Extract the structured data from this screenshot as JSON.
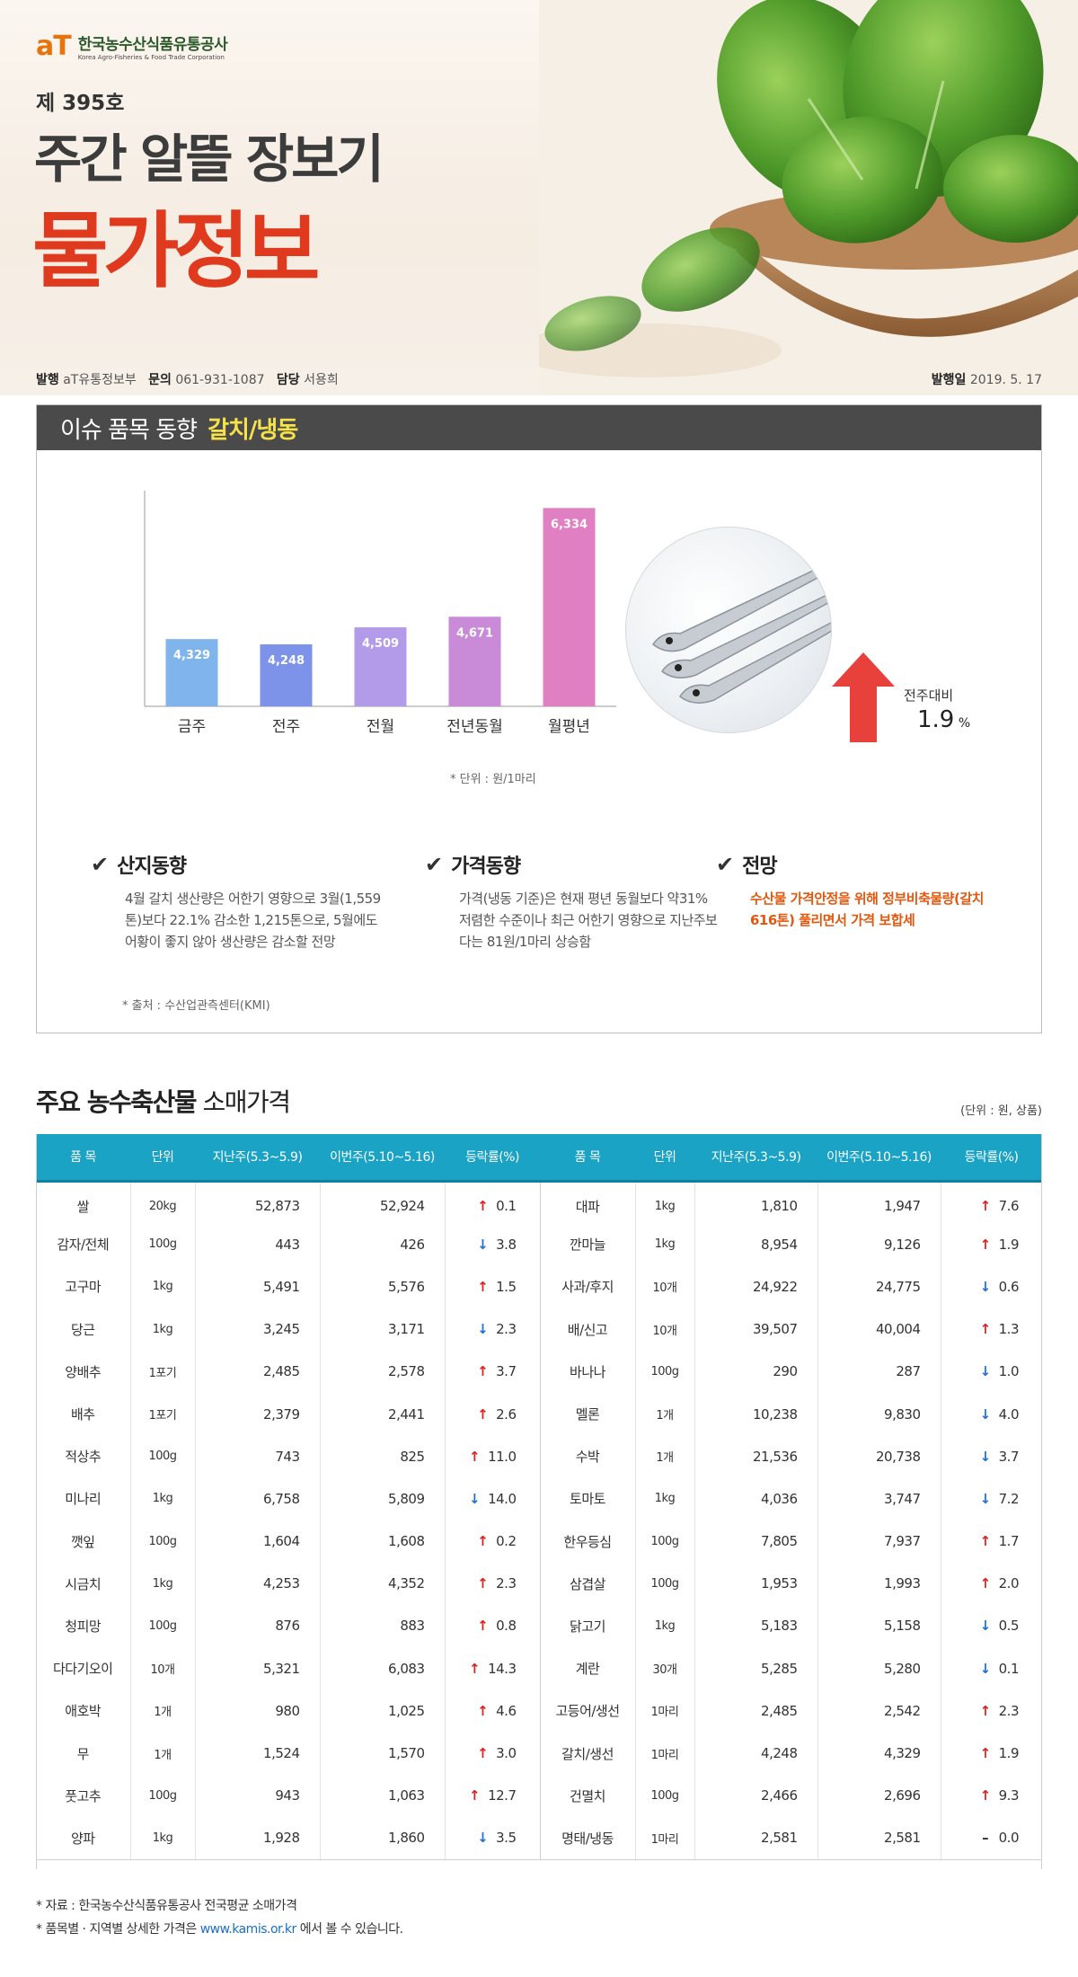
{
  "header": {
    "logo_mark": "aT",
    "logo_ko": "한국농수산식품유통공사",
    "logo_en": "Korea Agro-Fisheries & Food Trade Corporation",
    "issue_prefix": "제 ",
    "issue_number": "395",
    "issue_suffix": "호",
    "title_line1": "주간 알뜰 장보기",
    "title_line2": "물가정보",
    "publisher_label": "발행",
    "publisher": "aT유통정보부",
    "contact_label": "문의",
    "contact": "061-931-1087",
    "manager_label": "담당",
    "manager": "서용희",
    "date_label": "발행일",
    "date": "2019. 5. 17"
  },
  "issue": {
    "label": "이슈 품목 동향",
    "item": "갈치/냉동",
    "unit_note": "* 단위 : 원/1마리",
    "change_label": "전주대비",
    "change_value": "1.9",
    "change_unit": "%",
    "columns": [
      {
        "title": "산지동향",
        "body": "4월 갈치 생산량은 어한기 영향으로 3월(1,559톤)보다 22.1% 감소한 1,215톤으로, 5월에도 어황이 좋지 않아 생산량은 감소할 전망"
      },
      {
        "title": "가격동향",
        "body": "가격(냉동 기준)은 현재 평년 동월보다 약31% 저렴한 수준이나 최근 어한기 영향으로 지난주보다는 81원/1마리 상승함"
      },
      {
        "title": "전망",
        "body": "수산물 가격안정을 위해 정부비축물량(갈치 616톤) 풀리면서 가격 보합세"
      }
    ],
    "source": "* 출처 : 수산업관측센터(KMI)"
  },
  "chart_data": {
    "type": "bar",
    "categories": [
      "금주",
      "전주",
      "전월",
      "전년동월",
      "월평년"
    ],
    "values": [
      4329,
      4248,
      4509,
      4671,
      6334
    ],
    "value_labels": [
      "4,329",
      "4,248",
      "4,509",
      "4,671",
      "6,334"
    ],
    "colors": [
      "#7fb4ec",
      "#7d93ea",
      "#b49bea",
      "#c98ad8",
      "#e17fc3"
    ],
    "ylim": [
      3300,
      6600
    ]
  },
  "table": {
    "title_bold": "주요 농수축산물",
    "title_rest": " 소매가격",
    "unit": "(단위 : 원, 상품)",
    "headers": [
      "품 목",
      "단위",
      "지난주(5.3~5.9)",
      "이번주(5.10~5.16)",
      "등락률(%)",
      "품 목",
      "단위",
      "지난주(5.3~5.9)",
      "이번주(5.10~5.16)",
      "등락률(%)"
    ],
    "rows": [
      [
        {
          "name": "쌀",
          "unit": "20kg",
          "prev": "52,873",
          "curr": "52,924",
          "dir": "up",
          "rate": "0.1"
        },
        {
          "name": "대파",
          "unit": "1kg",
          "prev": "1,810",
          "curr": "1,947",
          "dir": "up",
          "rate": "7.6"
        }
      ],
      [
        {
          "name": "감자/전체",
          "unit": "100g",
          "prev": "443",
          "curr": "426",
          "dir": "down",
          "rate": "3.8"
        },
        {
          "name": "깐마늘",
          "unit": "1kg",
          "prev": "8,954",
          "curr": "9,126",
          "dir": "up",
          "rate": "1.9"
        }
      ],
      [
        {
          "name": "고구마",
          "unit": "1kg",
          "prev": "5,491",
          "curr": "5,576",
          "dir": "up",
          "rate": "1.5"
        },
        {
          "name": "사과/후지",
          "unit": "10개",
          "prev": "24,922",
          "curr": "24,775",
          "dir": "down",
          "rate": "0.6"
        }
      ],
      [
        {
          "name": "당근",
          "unit": "1kg",
          "prev": "3,245",
          "curr": "3,171",
          "dir": "down",
          "rate": "2.3"
        },
        {
          "name": "배/신고",
          "unit": "10개",
          "prev": "39,507",
          "curr": "40,004",
          "dir": "up",
          "rate": "1.3"
        }
      ],
      [
        {
          "name": "양배추",
          "unit": "1포기",
          "prev": "2,485",
          "curr": "2,578",
          "dir": "up",
          "rate": "3.7"
        },
        {
          "name": "바나나",
          "unit": "100g",
          "prev": "290",
          "curr": "287",
          "dir": "down",
          "rate": "1.0"
        }
      ],
      [
        {
          "name": "배추",
          "unit": "1포기",
          "prev": "2,379",
          "curr": "2,441",
          "dir": "up",
          "rate": "2.6"
        },
        {
          "name": "멜론",
          "unit": "1개",
          "prev": "10,238",
          "curr": "9,830",
          "dir": "down",
          "rate": "4.0"
        }
      ],
      [
        {
          "name": "적상추",
          "unit": "100g",
          "prev": "743",
          "curr": "825",
          "dir": "up",
          "rate": "11.0"
        },
        {
          "name": "수박",
          "unit": "1개",
          "prev": "21,536",
          "curr": "20,738",
          "dir": "down",
          "rate": "3.7"
        }
      ],
      [
        {
          "name": "미나리",
          "unit": "1kg",
          "prev": "6,758",
          "curr": "5,809",
          "dir": "down",
          "rate": "14.0"
        },
        {
          "name": "토마토",
          "unit": "1kg",
          "prev": "4,036",
          "curr": "3,747",
          "dir": "down",
          "rate": "7.2"
        }
      ],
      [
        {
          "name": "깻잎",
          "unit": "100g",
          "prev": "1,604",
          "curr": "1,608",
          "dir": "up",
          "rate": "0.2"
        },
        {
          "name": "한우등심",
          "unit": "100g",
          "prev": "7,805",
          "curr": "7,937",
          "dir": "up",
          "rate": "1.7"
        }
      ],
      [
        {
          "name": "시금치",
          "unit": "1kg",
          "prev": "4,253",
          "curr": "4,352",
          "dir": "up",
          "rate": "2.3"
        },
        {
          "name": "삼겹살",
          "unit": "100g",
          "prev": "1,953",
          "curr": "1,993",
          "dir": "up",
          "rate": "2.0"
        }
      ],
      [
        {
          "name": "청피망",
          "unit": "100g",
          "prev": "876",
          "curr": "883",
          "dir": "up",
          "rate": "0.8"
        },
        {
          "name": "닭고기",
          "unit": "1kg",
          "prev": "5,183",
          "curr": "5,158",
          "dir": "down",
          "rate": "0.5"
        }
      ],
      [
        {
          "name": "다다기오이",
          "unit": "10개",
          "prev": "5,321",
          "curr": "6,083",
          "dir": "up",
          "rate": "14.3"
        },
        {
          "name": "계란",
          "unit": "30개",
          "prev": "5,285",
          "curr": "5,280",
          "dir": "down",
          "rate": "0.1"
        }
      ],
      [
        {
          "name": "애호박",
          "unit": "1개",
          "prev": "980",
          "curr": "1,025",
          "dir": "up",
          "rate": "4.6"
        },
        {
          "name": "고등어/생선",
          "unit": "1마리",
          "prev": "2,485",
          "curr": "2,542",
          "dir": "up",
          "rate": "2.3"
        }
      ],
      [
        {
          "name": "무",
          "unit": "1개",
          "prev": "1,524",
          "curr": "1,570",
          "dir": "up",
          "rate": "3.0"
        },
        {
          "name": "갈치/생선",
          "unit": "1마리",
          "prev": "4,248",
          "curr": "4,329",
          "dir": "up",
          "rate": "1.9"
        }
      ],
      [
        {
          "name": "풋고추",
          "unit": "100g",
          "prev": "943",
          "curr": "1,063",
          "dir": "up",
          "rate": "12.7"
        },
        {
          "name": "건멸치",
          "unit": "100g",
          "prev": "2,466",
          "curr": "2,696",
          "dir": "up",
          "rate": "9.3"
        }
      ],
      [
        {
          "name": "양파",
          "unit": "1kg",
          "prev": "1,928",
          "curr": "1,860",
          "dir": "down",
          "rate": "3.5"
        },
        {
          "name": "명태/냉동",
          "unit": "1마리",
          "prev": "2,581",
          "curr": "2,581",
          "dir": "flat",
          "rate": "0.0"
        }
      ]
    ]
  },
  "footer": {
    "note1": "* 자료 : 한국농수산식품유통공사 전국평균 소매가격",
    "note2_pre": "* 품목별 · 지역별 상세한 가격은 ",
    "link": "www.kamis.or.kr",
    "note2_post": " 에서 볼 수 있습니다."
  },
  "icons": {
    "check": "check-icon",
    "arrow_up": "arrow-up-icon",
    "arrow_down": "arrow-down-icon",
    "flat": "dash-icon"
  },
  "colors": {
    "title_red": "#e03a1e",
    "table_header": "#1aa3c4",
    "up": "#e02020",
    "down": "#2070d8",
    "highlight_yellow": "#f5e14a",
    "outlook_orange": "#e2580f"
  }
}
